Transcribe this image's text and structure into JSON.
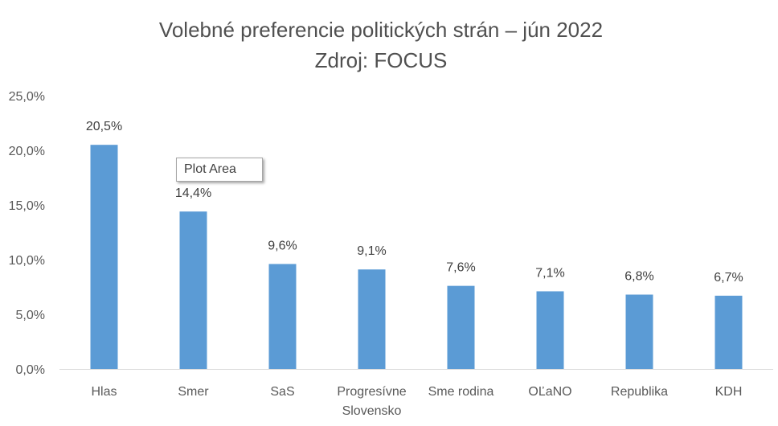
{
  "title": "Volebné preferencie politických strán – jún 2022",
  "subtitle": "Zdroj: FOCUS",
  "tooltip": "Plot Area",
  "bar_color": "#5b9bd5",
  "chart_data": {
    "type": "bar",
    "title": "Volebné preferencie politických strán – jún 2022",
    "subtitle": "Zdroj: FOCUS",
    "categories": [
      "Hlas",
      "Smer",
      "SaS",
      "Progresívne Slovensko",
      "Sme rodina",
      "OĽaNO",
      "Republika",
      "KDH"
    ],
    "category_lines": [
      [
        "Hlas"
      ],
      [
        "Smer"
      ],
      [
        "SaS"
      ],
      [
        "Progresívne",
        "Slovensko"
      ],
      [
        "Sme rodina"
      ],
      [
        "OĽaNO"
      ],
      [
        "Republika"
      ],
      [
        "KDH"
      ]
    ],
    "values": [
      20.5,
      14.4,
      9.6,
      9.1,
      7.6,
      7.1,
      6.8,
      6.7
    ],
    "value_labels": [
      "20,5%",
      "14,4%",
      "9,6%",
      "9,1%",
      "7,6%",
      "7,1%",
      "6,8%",
      "6,7%"
    ],
    "yticks": [
      0,
      5,
      10,
      15,
      20,
      25
    ],
    "ytick_labels": [
      "0,0%",
      "5,0%",
      "10,0%",
      "15,0%",
      "20,0%",
      "25,0%"
    ],
    "ylim": [
      0,
      25
    ],
    "xlabel": "",
    "ylabel": "",
    "grid": false,
    "legend": "none"
  }
}
